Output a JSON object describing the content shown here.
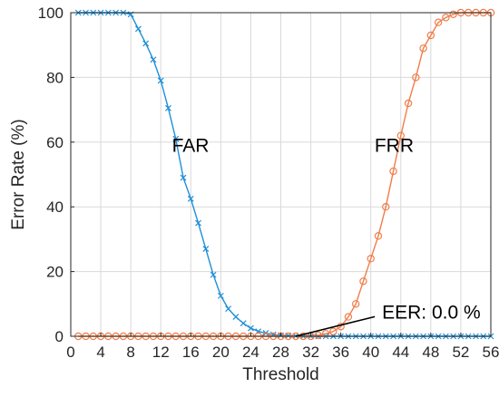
{
  "chart_data": {
    "type": "line",
    "xlabel": "Threshold",
    "ylabel": "Error Rate (%)",
    "xlim": [
      0,
      56
    ],
    "ylim": [
      0,
      100
    ],
    "xticks": [
      0,
      4,
      8,
      12,
      16,
      20,
      24,
      28,
      32,
      36,
      40,
      44,
      48,
      52,
      56
    ],
    "yticks": [
      0,
      20,
      40,
      60,
      80,
      100
    ],
    "grid": true,
    "x": [
      1,
      2,
      3,
      4,
      5,
      6,
      7,
      8,
      9,
      10,
      11,
      12,
      13,
      14,
      15,
      16,
      17,
      18,
      19,
      20,
      21,
      22,
      23,
      24,
      25,
      26,
      27,
      28,
      29,
      30,
      31,
      32,
      33,
      34,
      35,
      36,
      37,
      38,
      39,
      40,
      41,
      42,
      43,
      44,
      45,
      46,
      47,
      48,
      49,
      50,
      51,
      52,
      53,
      54,
      55,
      56
    ],
    "series": [
      {
        "name": "FAR",
        "color": "#1f8fd8",
        "marker": "x",
        "values": [
          100,
          100,
          100,
          100,
          100,
          100,
          100,
          99.5,
          95,
          90.5,
          85.5,
          79,
          70.5,
          61,
          49,
          42.5,
          35,
          27,
          19,
          12.5,
          8.5,
          6,
          4,
          2.5,
          1.5,
          1,
          0.5,
          0.3,
          0.2,
          0.1,
          0,
          0,
          0,
          0,
          0,
          0,
          0,
          0,
          0,
          0,
          0,
          0,
          0,
          0,
          0,
          0,
          0,
          0,
          0,
          0,
          0,
          0,
          0,
          0,
          0,
          0
        ]
      },
      {
        "name": "FRR",
        "color": "#f07d4a",
        "marker": "o",
        "values": [
          0,
          0,
          0,
          0,
          0,
          0,
          0,
          0,
          0,
          0,
          0,
          0,
          0,
          0,
          0,
          0,
          0,
          0,
          0,
          0,
          0,
          0,
          0,
          0,
          0,
          0,
          0,
          0,
          0,
          0,
          0,
          0,
          0.3,
          0.8,
          1.5,
          3,
          6,
          10,
          17,
          24,
          31,
          40,
          51,
          62,
          72,
          80,
          89,
          93,
          97,
          98.5,
          99.5,
          100,
          100,
          100,
          100,
          100
        ]
      }
    ],
    "annotations": [
      {
        "id": "far",
        "text": "FAR",
        "x": 13.5,
        "y": 57
      },
      {
        "id": "frr",
        "text": "FRR",
        "x": 40.5,
        "y": 57
      },
      {
        "id": "eer",
        "text": "EER: 0.0 %",
        "x": 41.5,
        "y": 5.5,
        "arrow_to": [
          30,
          0
        ]
      }
    ]
  }
}
